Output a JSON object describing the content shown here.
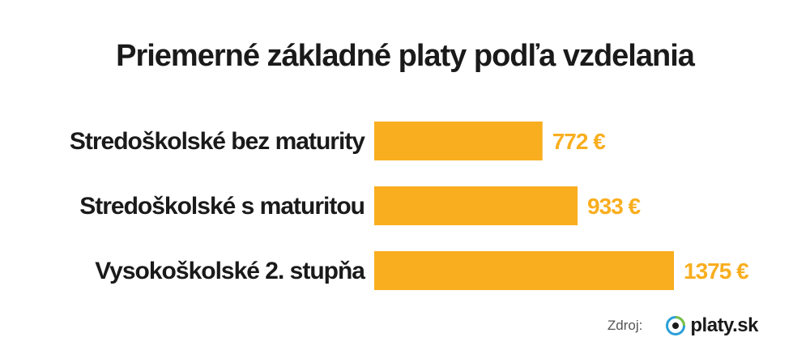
{
  "chart_data": {
    "type": "bar",
    "orientation": "horizontal",
    "title": "Priemerné základné platy podľa vzdelania",
    "categories": [
      "Stredoškolské bez maturity",
      "Stredoškolské s maturitou",
      "Vysokoškolské 2. stupňa"
    ],
    "values": [
      772,
      933,
      1375
    ],
    "value_labels": [
      "772 €",
      "933 €",
      "1375 €"
    ],
    "xlim": [
      0,
      1375
    ],
    "grid": false,
    "legend": "none"
  },
  "colors": {
    "bar": "#F9AE1F",
    "value_text": "#F9AE1F",
    "title_text": "#1a1a1a",
    "logo_ring": "#2a9fd8",
    "logo_accent": "#7ac143"
  },
  "source": {
    "label": "Zdroj:",
    "logo_icon": "eye-ring-icon",
    "logo_text": "platy.sk"
  }
}
